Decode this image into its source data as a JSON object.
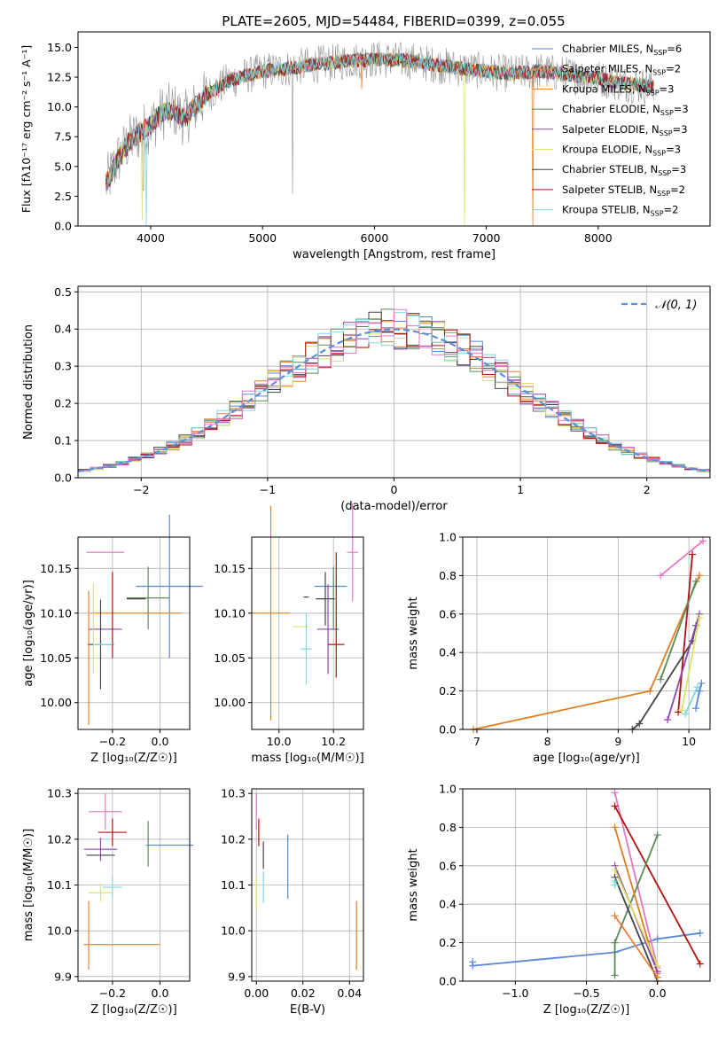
{
  "figure": {
    "title": "PLATE=2605, MJD=54484, FIBERID=0399, z=0.055"
  },
  "colors": {
    "chabrier_miles": "#5b86d4",
    "salpeter_miles": "#e8803a",
    "kroupa_miles": "#e07e22",
    "chabrier_elodie": "#5a8a5a",
    "salpeter_elodie": "#8e44ad",
    "kroupa_elodie": "#d9e36a",
    "chabrier_stelib": "#444444",
    "salpeter_stelib": "#b21010",
    "kroupa_stelib": "#7fd8e0",
    "pink": "#e377c2",
    "data_gray": "#7f7f7f",
    "normal_curve": "#5b8fd6",
    "grid": "#b0b0b0"
  },
  "chart_data": [
    {
      "id": "spectrum",
      "type": "line",
      "xlabel": "wavelength [Angstrom, rest frame]",
      "ylabel": "Flux [fλ10⁻¹⁷ erg cm⁻² s⁻¹ A⁻¹]",
      "xlim": [
        3350,
        9000
      ],
      "ylim": [
        0,
        16.3
      ],
      "xticks": [
        "4000",
        "5000",
        "6000",
        "7000",
        "8000"
      ],
      "yticks": [
        "0.0",
        "2.5",
        "5.0",
        "7.5",
        "10.0",
        "12.5",
        "15.0"
      ],
      "grid": false,
      "legend_position": "top-right",
      "x_range": [
        3600,
        8500
      ],
      "continuum": [
        [
          3600,
          3.5
        ],
        [
          3700,
          5.5
        ],
        [
          3800,
          7.0
        ],
        [
          3900,
          7.8
        ],
        [
          4000,
          8.5
        ],
        [
          4100,
          9.5
        ],
        [
          4200,
          9.8
        ],
        [
          4300,
          9.0
        ],
        [
          4400,
          10.0
        ],
        [
          4500,
          11.0
        ],
        [
          4700,
          12.2
        ],
        [
          5000,
          13.0
        ],
        [
          5200,
          13.2
        ],
        [
          5500,
          13.6
        ],
        [
          5800,
          13.9
        ],
        [
          6000,
          14.0
        ],
        [
          6300,
          13.9
        ],
        [
          6500,
          13.6
        ],
        [
          6800,
          13.2
        ],
        [
          7000,
          13.0
        ],
        [
          7200,
          12.8
        ],
        [
          7500,
          13.0
        ],
        [
          7800,
          12.6
        ],
        [
          8000,
          12.4
        ],
        [
          8200,
          12.0
        ],
        [
          8500,
          11.7
        ]
      ],
      "legend": [
        {
          "label": "Chabrier MILES, N",
          "sub": "SSP",
          "n": "=6"
        },
        {
          "label": "Salpeter MILES, N",
          "sub": "SSP",
          "n": "=2"
        },
        {
          "label": "Kroupa MILES, N",
          "sub": "SSP",
          "n": "=3"
        },
        {
          "label": "Chabrier ELODIE, N",
          "sub": "SSP",
          "n": "=3"
        },
        {
          "label": "Salpeter ELODIE, N",
          "sub": "SSP",
          "n": "=3"
        },
        {
          "label": "Kroupa ELODIE, N",
          "sub": "SSP",
          "n": "=3"
        },
        {
          "label": "Chabrier STELIB, N",
          "sub": "SSP",
          "n": "=3"
        },
        {
          "label": "Salpeter STELIB, N",
          "sub": "SSP",
          "n": "=2"
        },
        {
          "label": "Kroupa STELIB, N",
          "sub": "SSP",
          "n": "=2"
        }
      ]
    },
    {
      "id": "residuals",
      "type": "line",
      "xlabel": "(data-model)/error",
      "ylabel": "Normed distribution",
      "xlim": [
        -2.5,
        2.5
      ],
      "ylim": [
        0,
        0.515
      ],
      "xticks": [
        -2,
        -1,
        0,
        1,
        2
      ],
      "xtick_labels": [
        "−2",
        "−1",
        "0",
        "1",
        "2"
      ],
      "yticks": [
        0.0,
        0.1,
        0.2,
        0.3,
        0.4,
        0.5
      ],
      "ytick_labels": [
        "0.0",
        "0.1",
        "0.2",
        "0.3",
        "0.4",
        "0.5"
      ],
      "grid": true,
      "legend_position": "top-right",
      "legend": [
        {
          "label": "𝒩(0, 1)"
        }
      ],
      "bin_width": 0.1
    },
    {
      "id": "age_vs_Z",
      "type": "scatter",
      "xlabel": "Z [log₁₀(Z/Z☉)]",
      "ylabel": "age  [log₁₀(age/yr)]",
      "xlim": [
        -0.345,
        0.125
      ],
      "ylim": [
        9.97,
        10.185
      ],
      "xticks": [
        "−0.2",
        "0.0"
      ],
      "yticks": [
        "10.00",
        "10.05",
        "10.10",
        "10.15"
      ],
      "grid": true,
      "points": [
        {
          "series": "pink",
          "x": -0.23,
          "y": 10.168,
          "xerr": 0.08,
          "yerr": 0.0
        },
        {
          "series": "chabrier_miles",
          "x": 0.04,
          "y": 10.13,
          "xerr": 0.14,
          "yerr": 0.08
        },
        {
          "series": "chabrier_elodie",
          "x": -0.05,
          "y": 10.117,
          "xerr": 0.09,
          "yerr": 0.035
        },
        {
          "series": "chabrier_stelib",
          "x": -0.1,
          "y": 10.116,
          "xerr": 0.04,
          "yerr": 0.0
        },
        {
          "series": "kroupa_miles",
          "x": -0.1,
          "y": 10.1,
          "xerr": 0.19,
          "yerr": 0.0
        },
        {
          "series": "salpeter_elodie",
          "x": -0.23,
          "y": 10.082,
          "xerr": 0.07,
          "yerr": 0.0
        },
        {
          "series": "salpeter_stelib",
          "x": -0.2,
          "y": 10.098,
          "xerr": 0.0,
          "yerr": 0.048
        },
        {
          "series": "chabrier_stelib",
          "x": -0.25,
          "y": 10.065,
          "xerr": 0.055,
          "yerr": 0.05
        },
        {
          "series": "kroupa_stelib",
          "x": -0.24,
          "y": 10.065,
          "xerr": 0.04,
          "yerr": 0.0
        },
        {
          "series": "kroupa_elodie",
          "x": -0.28,
          "y": 10.083,
          "xerr": 0.0,
          "yerr": 0.05
        },
        {
          "series": "salpeter_miles",
          "x": -0.3,
          "y": 10.05,
          "xerr": 0.0,
          "yerr": 0.075
        }
      ]
    },
    {
      "id": "age_vs_mass",
      "type": "scatter",
      "xlabel": "mass [log₁₀(M/M☉)]",
      "ylabel": "",
      "xlim": [
        9.9,
        10.31
      ],
      "ylim": [
        9.97,
        10.185
      ],
      "xticks": [
        "10.0",
        "10.2"
      ],
      "yticks": [
        "10.00",
        "10.05",
        "10.10",
        "10.15"
      ],
      "grid": true,
      "points": [
        {
          "series": "pink",
          "x": 10.27,
          "y": 10.168,
          "xerr": 0.02,
          "yerr": 0.055
        },
        {
          "series": "chabrier_miles",
          "x": 10.19,
          "y": 10.13,
          "xerr": 0.06,
          "yerr": 0.0
        },
        {
          "series": "chabrier_elodie",
          "x": 10.2,
          "y": 10.117,
          "xerr": 0.0,
          "yerr": 0.035
        },
        {
          "series": "chabrier_stelib",
          "x": 10.17,
          "y": 10.116,
          "xerr": 0.035,
          "yerr": 0.03
        },
        {
          "series": "kroupa_miles",
          "x": 9.97,
          "y": 10.1,
          "xerr": 0.07,
          "yerr": 0.12
        },
        {
          "series": "salpeter_elodie",
          "x": 10.18,
          "y": 10.082,
          "xerr": 0.04,
          "yerr": 0.05
        },
        {
          "series": "salpeter_stelib",
          "x": 10.21,
          "y": 10.098,
          "xerr": 0.0,
          "yerr": 0.07
        },
        {
          "series": "salpeter_stelib",
          "x": 10.21,
          "y": 10.065,
          "xerr": 0.03,
          "yerr": 0.0
        },
        {
          "series": "kroupa_elodie",
          "x": 10.08,
          "y": 10.085,
          "xerr": 0.03,
          "yerr": 0.0
        },
        {
          "series": "kroupa_stelib",
          "x": 10.1,
          "y": 10.06,
          "xerr": 0.02,
          "yerr": 0.04
        },
        {
          "series": "chabrier_stelib",
          "x": 10.1,
          "y": 10.118,
          "xerr": 0.0,
          "yerr": 0.0
        }
      ]
    },
    {
      "id": "weight_vs_age",
      "type": "line",
      "xlabel": "age  [log₁₀(age/yr)]",
      "ylabel": "mass weight",
      "xlim": [
        6.8,
        10.3
      ],
      "ylim": [
        0,
        1.0
      ],
      "xticks": [
        "7",
        "8",
        "9",
        "10"
      ],
      "yticks": [
        "0.0",
        "0.2",
        "0.4",
        "0.6",
        "0.8",
        "1.0"
      ],
      "grid": true,
      "series": [
        {
          "key": "kroupa_miles",
          "points": [
            [
              6.95,
              0.0
            ],
            [
              9.45,
              0.2
            ],
            [
              10.15,
              0.8
            ]
          ]
        },
        {
          "key": "pink",
          "points": [
            [
              9.6,
              0.8
            ],
            [
              10.2,
              0.98
            ]
          ]
        },
        {
          "key": "salpeter_stelib",
          "points": [
            [
              9.85,
              0.09
            ],
            [
              10.05,
              0.91
            ]
          ]
        },
        {
          "key": "chabrier_elodie",
          "points": [
            [
              9.6,
              0.26
            ],
            [
              10.1,
              0.77
            ]
          ]
        },
        {
          "key": "chabrier_stelib",
          "points": [
            [
              9.2,
              0.0
            ],
            [
              9.3,
              0.03
            ],
            [
              10.05,
              0.46
            ],
            [
              10.1,
              0.54
            ]
          ]
        },
        {
          "key": "salpeter_elodie",
          "points": [
            [
              9.7,
              0.05
            ],
            [
              10.15,
              0.6
            ]
          ]
        },
        {
          "key": "kroupa_elodie",
          "points": [
            [
              9.9,
              0.1
            ],
            [
              10.15,
              0.58
            ]
          ]
        },
        {
          "key": "kroupa_stelib",
          "points": [
            [
              9.95,
              0.08
            ],
            [
              10.12,
              0.22
            ]
          ]
        },
        {
          "key": "chabrier_miles",
          "points": [
            [
              10.1,
              0.11
            ],
            [
              10.15,
              0.2
            ],
            [
              10.18,
              0.24
            ]
          ]
        }
      ]
    },
    {
      "id": "mass_vs_Z",
      "type": "scatter",
      "xlabel": "Z [log₁₀(Z/Z☉)]",
      "ylabel": "mass [log₁₀(M/M☉)]",
      "xlim": [
        -0.345,
        0.125
      ],
      "ylim": [
        9.89,
        10.31
      ],
      "xticks": [
        "−0.2",
        "0.0"
      ],
      "yticks": [
        "9.9",
        "10.0",
        "10.1",
        "10.2",
        "10.3"
      ],
      "grid": true,
      "points": [
        {
          "series": "pink",
          "x": -0.23,
          "y": 10.26,
          "xerr": 0.07,
          "yerr": 0.04
        },
        {
          "series": "salpeter_stelib",
          "x": -0.2,
          "y": 10.215,
          "xerr": 0.06,
          "yerr": 0.03
        },
        {
          "series": "chabrier_miles",
          "x": 0.04,
          "y": 10.187,
          "xerr": 0.1,
          "yerr": 0.0
        },
        {
          "series": "chabrier_elodie",
          "x": -0.05,
          "y": 10.19,
          "xerr": 0.0,
          "yerr": 0.05
        },
        {
          "series": "salpeter_elodie",
          "x": -0.25,
          "y": 10.178,
          "xerr": 0.07,
          "yerr": 0.025
        },
        {
          "series": "chabrier_stelib",
          "x": -0.25,
          "y": 10.165,
          "xerr": 0.06,
          "yerr": 0.0
        },
        {
          "series": "kroupa_stelib",
          "x": -0.2,
          "y": 10.095,
          "xerr": 0.04,
          "yerr": 0.025
        },
        {
          "series": "kroupa_elodie",
          "x": -0.25,
          "y": 10.083,
          "xerr": 0.05,
          "yerr": 0.02
        },
        {
          "series": "kroupa_miles",
          "x": -0.16,
          "y": 9.97,
          "xerr": 0.16,
          "yerr": 0.0
        },
        {
          "series": "salpeter_miles",
          "x": -0.3,
          "y": 9.99,
          "xerr": 0.0,
          "yerr": 0.075
        }
      ]
    },
    {
      "id": "mass_vs_EBV",
      "type": "scatter",
      "xlabel": "E(B-V)",
      "ylabel": "",
      "xlim": [
        -0.002,
        0.046
      ],
      "ylim": [
        9.89,
        10.31
      ],
      "xticks": [
        "0.00",
        "0.02",
        "0.04"
      ],
      "yticks": [
        "9.9",
        "10.0",
        "10.1",
        "10.2",
        "10.3"
      ],
      "grid": true,
      "points": [
        {
          "series": "pink",
          "x": 0.0,
          "y": 10.26,
          "xerr": 0.0,
          "yerr": 0.04
        },
        {
          "series": "salpeter_stelib",
          "x": 0.001,
          "y": 10.215,
          "xerr": 0.0,
          "yerr": 0.03
        },
        {
          "series": "chabrier_stelib",
          "x": 0.003,
          "y": 10.165,
          "xerr": 0.0,
          "yerr": 0.03
        },
        {
          "series": "kroupa_stelib",
          "x": 0.003,
          "y": 10.095,
          "xerr": 0.0,
          "yerr": 0.035
        },
        {
          "series": "kroupa_elodie",
          "x": 0.0,
          "y": 10.083,
          "xerr": 0.0,
          "yerr": 0.035
        },
        {
          "series": "chabrier_miles",
          "x": 0.0135,
          "y": 10.14,
          "xerr": 0.0,
          "yerr": 0.07
        },
        {
          "series": "kroupa_miles",
          "x": 0.043,
          "y": 9.99,
          "xerr": 0.0,
          "yerr": 0.075
        }
      ]
    },
    {
      "id": "weight_vs_Z",
      "type": "line",
      "xlabel": "Z [log₁₀(Z/Z☉)]",
      "ylabel": "mass weight",
      "xlim": [
        -1.37,
        0.37
      ],
      "ylim": [
        0,
        1.0
      ],
      "xticks": [
        "−1.0",
        "−0.5",
        "0.0"
      ],
      "yticks": [
        "0.0",
        "0.2",
        "0.4",
        "0.6",
        "0.8",
        "1.0"
      ],
      "grid": true,
      "series": [
        {
          "key": "chabrier_miles",
          "points": [
            [
              -1.3,
              0.1
            ],
            [
              -1.3,
              0.08
            ],
            [
              -0.3,
              0.15
            ],
            [
              0.0,
              0.22
            ],
            [
              0.3,
              0.25
            ]
          ]
        },
        {
          "key": "pink",
          "points": [
            [
              -0.3,
              0.98
            ],
            [
              0.0,
              0.07
            ]
          ]
        },
        {
          "key": "salpeter_stelib",
          "points": [
            [
              -0.3,
              0.91
            ],
            [
              0.3,
              0.09
            ]
          ]
        },
        {
          "key": "chabrier_elodie",
          "points": [
            [
              -0.3,
              0.03
            ],
            [
              -0.3,
              0.2
            ],
            [
              0.0,
              0.76
            ]
          ]
        },
        {
          "key": "kroupa_miles",
          "points": [
            [
              -0.3,
              0.8
            ],
            [
              0.0,
              0.04
            ]
          ]
        },
        {
          "key": "salpeter_elodie",
          "points": [
            [
              -0.3,
              0.6
            ],
            [
              0.0,
              0.05
            ]
          ]
        },
        {
          "key": "kroupa_elodie",
          "points": [
            [
              -0.3,
              0.58
            ],
            [
              0.0,
              0.08
            ]
          ]
        },
        {
          "key": "chabrier_stelib",
          "points": [
            [
              -0.3,
              0.54
            ],
            [
              0.0,
              0.0
            ]
          ]
        },
        {
          "key": "kroupa_stelib",
          "points": [
            [
              -0.3,
              0.52
            ],
            [
              -0.3,
              0.5
            ]
          ]
        },
        {
          "key": "salpeter_miles",
          "points": [
            [
              -0.3,
              0.34
            ],
            [
              0.0,
              0.02
            ]
          ]
        }
      ]
    }
  ]
}
